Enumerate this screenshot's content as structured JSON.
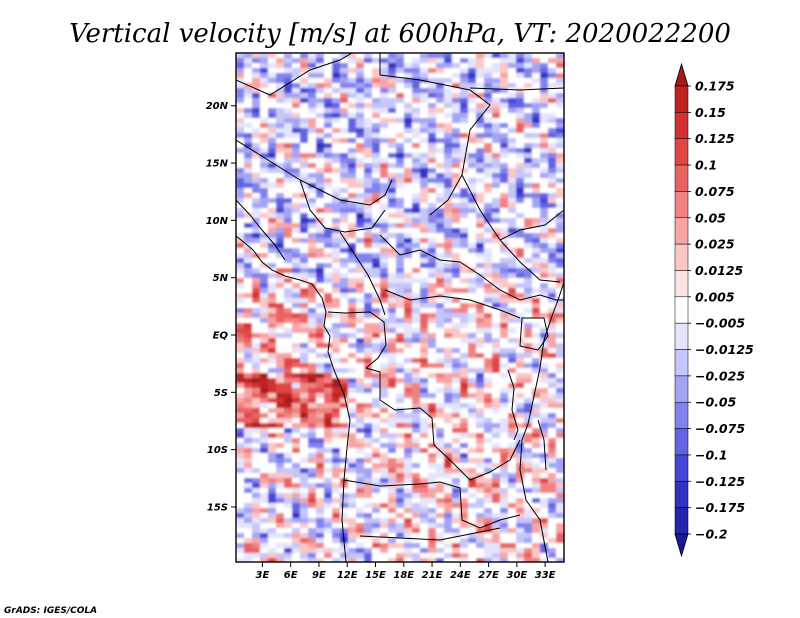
{
  "chart_data": {
    "type": "heatmap",
    "title": "Vertical velocity [m/s] at 600hPa, VT: 2020022200",
    "variable": "Vertical velocity",
    "units": "m/s",
    "level": "600hPa",
    "valid_time": "2020022200",
    "x_axis": {
      "ticks": [
        3,
        6,
        9,
        12,
        15,
        18,
        21,
        24,
        27,
        30,
        33
      ],
      "tick_labels": [
        "3E",
        "6E",
        "9E",
        "12E",
        "15E",
        "18E",
        "21E",
        "24E",
        "27E",
        "30E",
        "33E"
      ],
      "range": [
        0.2,
        35.0
      ]
    },
    "y_axis": {
      "ticks": [
        20,
        15,
        10,
        5,
        0,
        -5,
        -10,
        -15
      ],
      "tick_labels": [
        "20N",
        "15N",
        "10N",
        "5N",
        "EQ",
        "5S",
        "10S",
        "15S"
      ],
      "range": [
        -19.8,
        24.6
      ]
    },
    "colorbar": {
      "levels": [
        "0.175",
        "0.15",
        "0.125",
        "0.1",
        "0.075",
        "0.05",
        "0.025",
        "0.0125",
        "0.005",
        "−0.005",
        "−0.0125",
        "−0.025",
        "−0.05",
        "−0.075",
        "−0.1",
        "−0.125",
        "−0.175",
        "−0.2"
      ],
      "colors": [
        "#a51a1a",
        "#be2424",
        "#d23232",
        "#e04646",
        "#e86464",
        "#f08282",
        "#f6a4a4",
        "#fac6c6",
        "#fde4e4",
        "#ffffff",
        "#e4e4fd",
        "#c6c6fa",
        "#a4a4f4",
        "#8282ec",
        "#6464e2",
        "#4646d6",
        "#3232c2",
        "#2424ac",
        "#1a1a96"
      ],
      "orientation": "vertical",
      "position": "right"
    },
    "field_note": "Noisy wavy pattern of alternating weak ascent/descent; strong positive (red) banding near 5S along the Atlantic coast; mixed blue over the Sahel and north.",
    "credit": "GrADS: IGES/COLA"
  }
}
